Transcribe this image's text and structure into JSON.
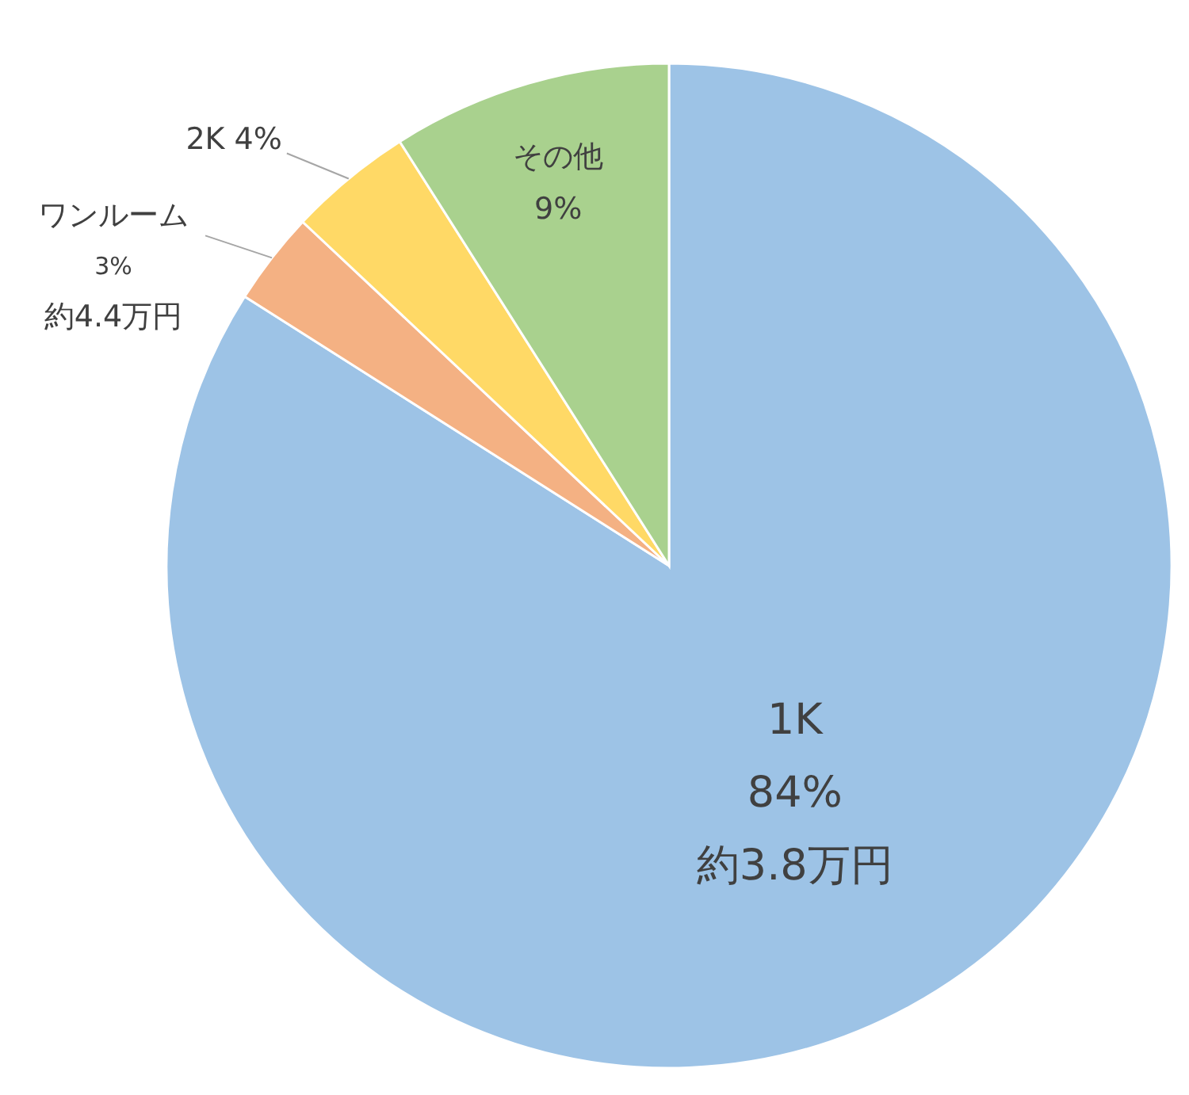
{
  "chart_data": {
    "type": "pie",
    "categories": [
      "1K",
      "ワンルーム",
      "2K",
      "その他"
    ],
    "values": [
      84,
      3,
      4,
      9
    ],
    "colors": [
      "#9dc3e6",
      "#f4b183",
      "#ffd966",
      "#a9d18e"
    ],
    "value_labels": [
      "84%",
      "3%",
      "4%",
      "9%"
    ],
    "annotations": [
      {
        "text": "約3.8万円",
        "x": "1K"
      },
      {
        "text": "約4.4万円",
        "x": "ワンルーム"
      }
    ]
  }
}
